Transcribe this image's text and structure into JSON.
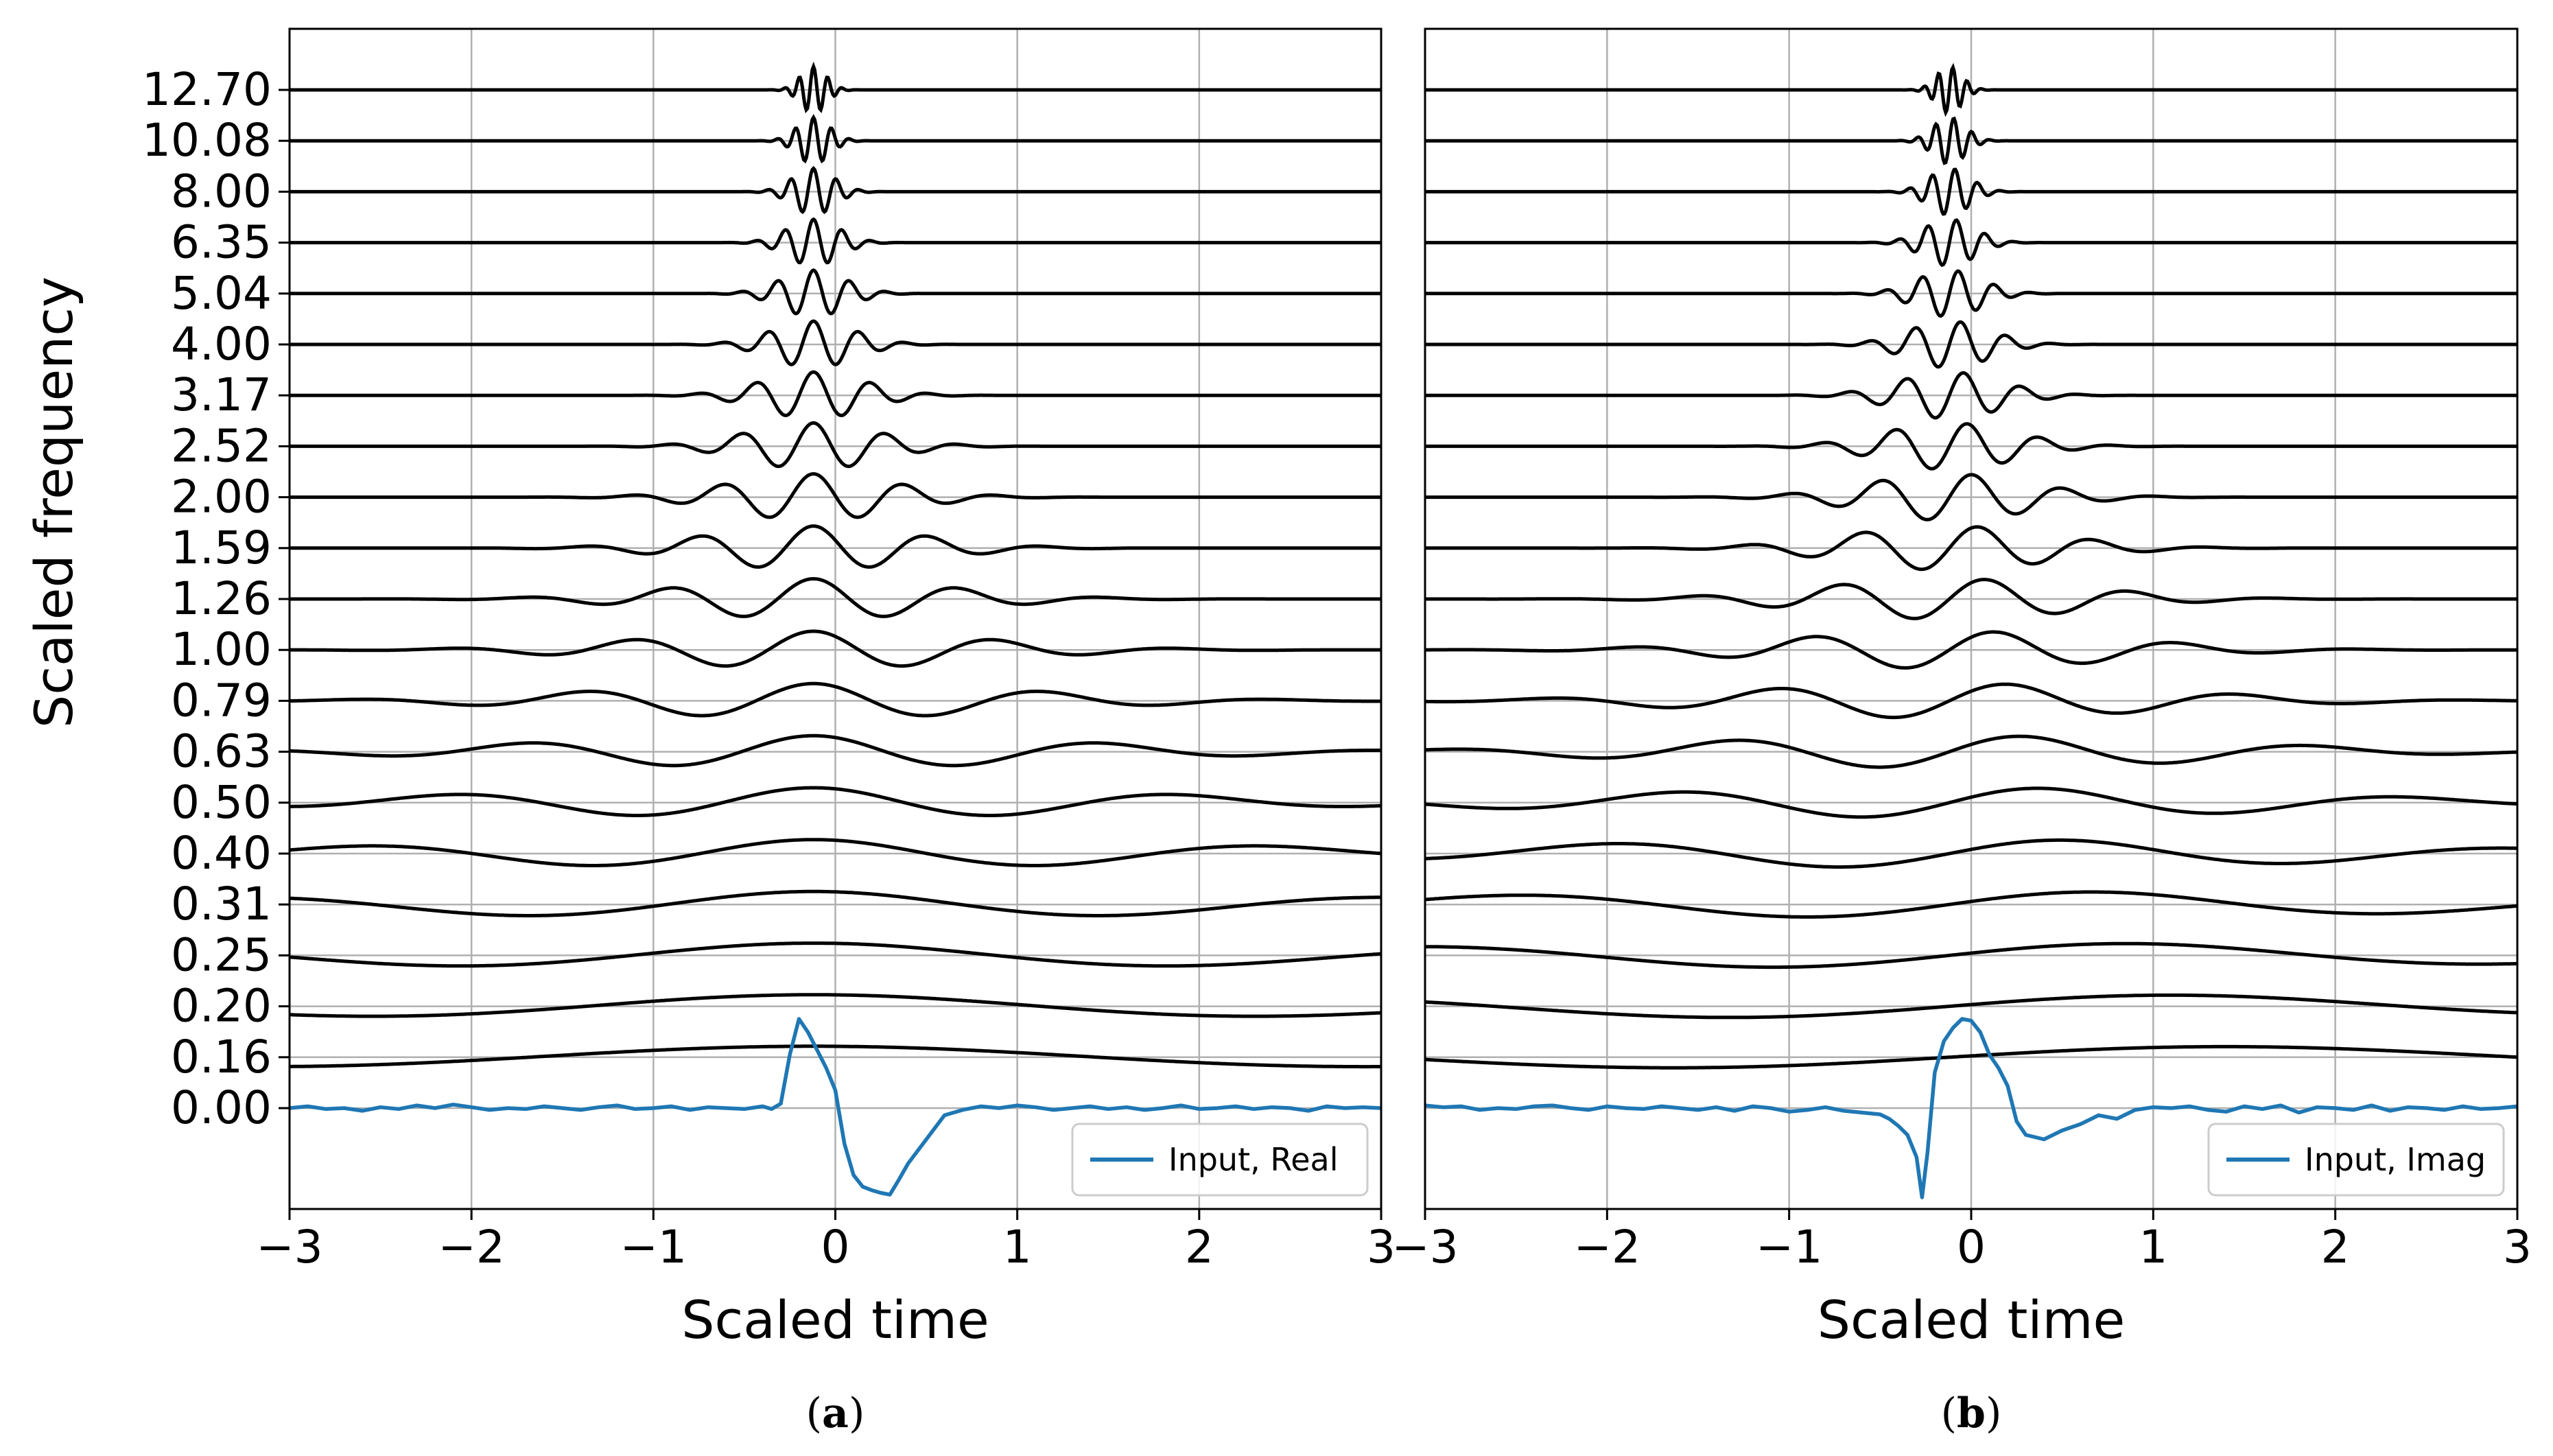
{
  "figure": {
    "panels": [
      {
        "label_open": "(",
        "label_letter": "a",
        "label_close": ")",
        "legend_label": "Input, Real",
        "xlabel": "Scaled time",
        "ylabel": "Scaled frequency",
        "input_color": "#1f77b4",
        "show_ylabel": true,
        "show_yticks": true
      },
      {
        "label_open": "(",
        "label_letter": "b",
        "label_close": ")",
        "legend_label": "Input, Imag",
        "xlabel": "Scaled time",
        "ylabel": "",
        "input_color": "#1f77b4",
        "show_ylabel": false,
        "show_yticks": false
      }
    ]
  },
  "chart_data": [
    {
      "type": "line",
      "title": "",
      "xlabel": "Scaled time",
      "ylabel": "Scaled frequency",
      "xlim": [
        -3,
        3
      ],
      "xticks": [
        -3,
        -2,
        -1,
        0,
        1,
        2,
        3
      ],
      "xtick_labels": [
        "−3",
        "−2",
        "−1",
        "0",
        "1",
        "2",
        "3"
      ],
      "grid": true,
      "legend_position": "lower-right",
      "ytick_labels": [
        "0.00",
        "0.16",
        "0.20",
        "0.25",
        "0.31",
        "0.40",
        "0.50",
        "0.63",
        "0.79",
        "1.00",
        "1.26",
        "1.59",
        "2.00",
        "2.52",
        "3.17",
        "4.00",
        "5.04",
        "6.35",
        "8.00",
        "10.08",
        "12.70"
      ],
      "frequencies": [
        0.16,
        0.2,
        0.25,
        0.31,
        0.4,
        0.5,
        0.63,
        0.79,
        1.0,
        1.26,
        1.59,
        2.0,
        2.52,
        3.17,
        4.0,
        5.04,
        6.35,
        8.0,
        10.08,
        12.7
      ],
      "wavelet_phase": "real",
      "input_series": {
        "name": "Input, Real",
        "x": [
          -3.0,
          -2.9,
          -2.8,
          -2.7,
          -2.6,
          -2.5,
          -2.4,
          -2.3,
          -2.2,
          -2.1,
          -2.0,
          -1.9,
          -1.8,
          -1.7,
          -1.6,
          -1.5,
          -1.4,
          -1.3,
          -1.2,
          -1.1,
          -1.0,
          -0.9,
          -0.8,
          -0.7,
          -0.6,
          -0.5,
          -0.4,
          -0.35,
          -0.3,
          -0.25,
          -0.2,
          -0.15,
          -0.1,
          -0.05,
          0.0,
          0.05,
          0.1,
          0.15,
          0.2,
          0.25,
          0.3,
          0.35,
          0.4,
          0.5,
          0.6,
          0.7,
          0.8,
          0.9,
          1.0,
          1.1,
          1.2,
          1.3,
          1.4,
          1.5,
          1.6,
          1.7,
          1.8,
          1.9,
          2.0,
          2.1,
          2.2,
          2.3,
          2.4,
          2.5,
          2.6,
          2.7,
          2.8,
          2.9,
          3.0
        ],
        "y": [
          0.0,
          0.02,
          -0.01,
          0.0,
          -0.03,
          0.01,
          -0.01,
          0.03,
          0.0,
          0.04,
          0.01,
          -0.02,
          0.0,
          -0.01,
          0.02,
          0.0,
          -0.02,
          0.01,
          0.03,
          -0.01,
          0.0,
          0.02,
          -0.02,
          0.01,
          0.0,
          -0.01,
          0.02,
          -0.01,
          0.05,
          0.6,
          1.0,
          0.85,
          0.65,
          0.45,
          0.2,
          -0.4,
          -0.75,
          -0.88,
          -0.92,
          -0.95,
          -0.97,
          -0.8,
          -0.62,
          -0.35,
          -0.08,
          -0.02,
          0.02,
          0.0,
          0.03,
          0.01,
          -0.02,
          0.0,
          0.02,
          -0.01,
          0.01,
          -0.02,
          0.0,
          0.03,
          -0.01,
          0.0,
          0.02,
          -0.01,
          0.01,
          0.0,
          -0.03,
          0.02,
          0.0,
          0.01,
          0.0
        ]
      }
    },
    {
      "type": "line",
      "title": "",
      "xlabel": "Scaled time",
      "ylabel": "",
      "xlim": [
        -3,
        3
      ],
      "xticks": [
        -3,
        -2,
        -1,
        0,
        1,
        2,
        3
      ],
      "xtick_labels": [
        "−3",
        "−2",
        "−1",
        "0",
        "1",
        "2",
        "3"
      ],
      "grid": true,
      "legend_position": "lower-right",
      "ytick_labels": [],
      "frequencies": [
        0.16,
        0.2,
        0.25,
        0.31,
        0.4,
        0.5,
        0.63,
        0.79,
        1.0,
        1.26,
        1.59,
        2.0,
        2.52,
        3.17,
        4.0,
        5.04,
        6.35,
        8.0,
        10.08,
        12.7
      ],
      "wavelet_phase": "imag",
      "input_series": {
        "name": "Input, Imag",
        "x": [
          -3.0,
          -2.9,
          -2.8,
          -2.7,
          -2.6,
          -2.5,
          -2.4,
          -2.3,
          -2.2,
          -2.1,
          -2.0,
          -1.9,
          -1.8,
          -1.7,
          -1.6,
          -1.5,
          -1.4,
          -1.3,
          -1.2,
          -1.1,
          -1.0,
          -0.9,
          -0.8,
          -0.7,
          -0.6,
          -0.5,
          -0.45,
          -0.4,
          -0.35,
          -0.3,
          -0.27,
          -0.24,
          -0.2,
          -0.15,
          -0.1,
          -0.05,
          0.0,
          0.05,
          0.1,
          0.15,
          0.2,
          0.25,
          0.3,
          0.4,
          0.5,
          0.6,
          0.7,
          0.8,
          0.9,
          1.0,
          1.1,
          1.2,
          1.3,
          1.4,
          1.5,
          1.6,
          1.7,
          1.8,
          1.9,
          2.0,
          2.1,
          2.2,
          2.3,
          2.4,
          2.5,
          2.6,
          2.7,
          2.8,
          2.9,
          3.0
        ],
        "y": [
          0.03,
          0.01,
          0.02,
          -0.02,
          0.0,
          -0.01,
          0.02,
          0.03,
          0.0,
          -0.02,
          0.02,
          0.0,
          -0.01,
          0.02,
          0.0,
          -0.02,
          0.01,
          -0.03,
          0.02,
          0.0,
          -0.04,
          -0.02,
          0.01,
          -0.03,
          -0.05,
          -0.07,
          -0.12,
          -0.2,
          -0.3,
          -0.55,
          -1.0,
          -0.5,
          0.4,
          0.75,
          0.9,
          1.0,
          0.98,
          0.85,
          0.6,
          0.45,
          0.25,
          -0.15,
          -0.3,
          -0.35,
          -0.25,
          -0.18,
          -0.08,
          -0.12,
          -0.02,
          0.01,
          0.0,
          0.02,
          -0.02,
          -0.04,
          0.02,
          -0.01,
          0.03,
          -0.05,
          0.01,
          0.0,
          -0.02,
          0.03,
          -0.03,
          0.01,
          0.0,
          -0.02,
          0.02,
          -0.01,
          0.0,
          0.02
        ]
      }
    }
  ]
}
